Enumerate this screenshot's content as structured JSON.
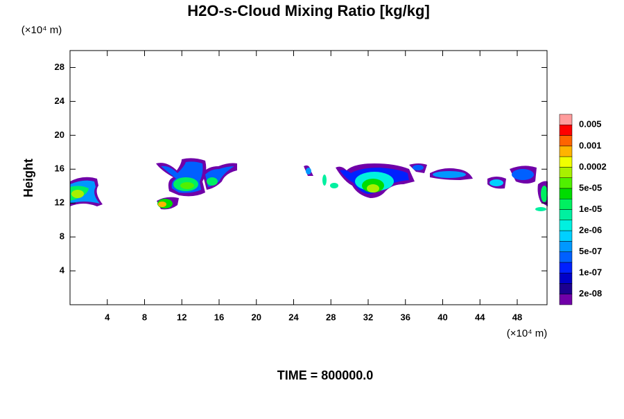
{
  "chart_data": {
    "type": "contour",
    "title": "H2O-s-Cloud Mixing Ratio [kg/kg]",
    "y_unit_label": "(×10⁴ m)",
    "x_unit_label": "(×10⁴ m)",
    "ylabel": "Height",
    "footer": "TIME = 800000.0",
    "xlim": [
      0,
      51.2
    ],
    "xticks": [
      4,
      8,
      12,
      16,
      20,
      24,
      28,
      32,
      36,
      40,
      44,
      48
    ],
    "ylim": [
      0,
      30
    ],
    "yticks": [
      4,
      8,
      12,
      16,
      20,
      24,
      28
    ],
    "colorbar": {
      "colors": [
        "#7000a8",
        "#1c0090",
        "#0000c8",
        "#0020ff",
        "#0060ff",
        "#0098ff",
        "#00d0ff",
        "#00f0e0",
        "#00f0a0",
        "#00f060",
        "#00dc00",
        "#50f000",
        "#a8f000",
        "#f0ff00",
        "#ffb400",
        "#ff6400",
        "#ff0000",
        "#ff9c9c"
      ],
      "levels": [
        {
          "value": 2e-08,
          "label": "2e-08"
        },
        {
          "value": 1e-07,
          "label": "1e-07"
        },
        {
          "value": 5e-07,
          "label": "5e-07"
        },
        {
          "value": 2e-06,
          "label": "2e-06"
        },
        {
          "value": 1e-05,
          "label": "1e-05"
        },
        {
          "value": 5e-05,
          "label": "5e-05"
        },
        0.0002,
        0.001,
        0.005
      ]
    }
  }
}
